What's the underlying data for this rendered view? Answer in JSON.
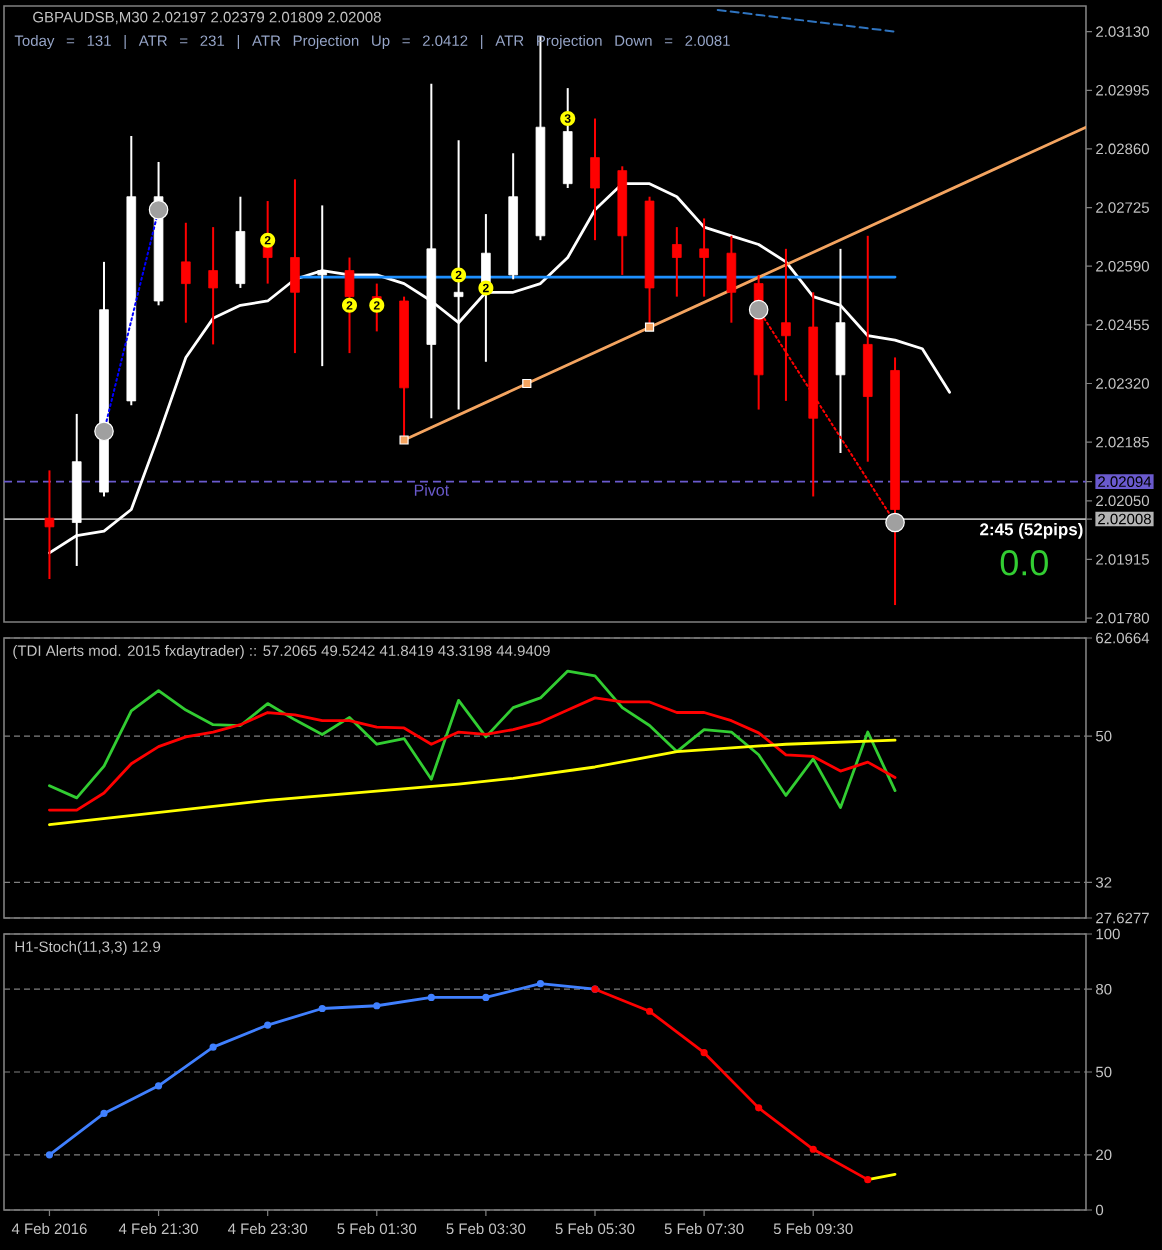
{
  "chart_data": [
    {
      "type": "candlestick",
      "title": "GBPAUDSB,M30 2.02197 2.02379 2.01809 2.02008",
      "subtitle": "Today = 131 | ATR = 231 | ATR Projection Up = 2.0412 | ATR Projection Down = 2.0081",
      "x": [
        "2016-02-04T19:30",
        "2016-02-04T20:00",
        "2016-02-04T20:30",
        "2016-02-04T21:00",
        "2016-02-04T21:30",
        "2016-02-04T22:00",
        "2016-02-04T22:30",
        "2016-02-04T23:00",
        "2016-02-04T23:30",
        "2016-02-05T00:00",
        "2016-02-05T00:30",
        "2016-02-05T01:00",
        "2016-02-05T01:30",
        "2016-02-05T02:00",
        "2016-02-05T02:30",
        "2016-02-05T03:00",
        "2016-02-05T03:30",
        "2016-02-05T04:00",
        "2016-02-05T04:30",
        "2016-02-05T05:00",
        "2016-02-05T05:30",
        "2016-02-05T06:00",
        "2016-02-05T06:30",
        "2016-02-05T07:00",
        "2016-02-05T07:30",
        "2016-02-05T08:00",
        "2016-02-05T08:30",
        "2016-02-05T09:00",
        "2016-02-05T09:30",
        "2016-02-05T10:00",
        "2016-02-05T10:30",
        "2016-02-05T11:00"
      ],
      "ohlc": [
        [
          2.0201,
          2.0212,
          2.0187,
          2.0199
        ],
        [
          2.02,
          2.0225,
          2.019,
          2.0214
        ],
        [
          2.0207,
          2.026,
          2.0206,
          2.0249
        ],
        [
          2.0228,
          2.0289,
          2.0227,
          2.0275
        ],
        [
          2.0251,
          2.0283,
          2.025,
          2.0275
        ],
        [
          2.026,
          2.0269,
          2.0246,
          2.0255
        ],
        [
          2.0258,
          2.0268,
          2.0241,
          2.0254
        ],
        [
          2.0255,
          2.0275,
          2.0254,
          2.0267
        ],
        [
          2.0264,
          2.0274,
          2.0255,
          2.0261
        ],
        [
          2.0261,
          2.0279,
          2.0239,
          2.0253
        ],
        [
          2.0257,
          2.0273,
          2.0236,
          2.0258
        ],
        [
          2.0258,
          2.0261,
          2.0239,
          2.0252
        ],
        [
          2.0252,
          2.0255,
          2.0244,
          2.0249
        ],
        [
          2.0251,
          2.0252,
          2.0219,
          2.0231
        ],
        [
          2.0241,
          2.0301,
          2.0224,
          2.0263
        ],
        [
          2.0252,
          2.0288,
          2.0226,
          2.0253
        ],
        [
          2.0253,
          2.0271,
          2.0237,
          2.0262
        ],
        [
          2.0257,
          2.0285,
          2.0256,
          2.0275
        ],
        [
          2.0266,
          2.0312,
          2.0265,
          2.0291
        ],
        [
          2.0278,
          2.03,
          2.0277,
          2.029
        ],
        [
          2.0284,
          2.0293,
          2.0265,
          2.0277
        ],
        [
          2.0281,
          2.0282,
          2.0257,
          2.0266
        ],
        [
          2.0274,
          2.0275,
          2.0245,
          2.0254
        ],
        [
          2.0264,
          2.0268,
          2.0252,
          2.0261
        ],
        [
          2.0263,
          2.027,
          2.0252,
          2.0261
        ],
        [
          2.0262,
          2.0266,
          2.0246,
          2.0253
        ],
        [
          2.0255,
          2.0257,
          2.0226,
          2.0234
        ],
        [
          2.0246,
          2.0263,
          2.0228,
          2.0243
        ],
        [
          2.0245,
          2.0253,
          2.0206,
          2.0224
        ],
        [
          2.0234,
          2.0263,
          2.0216,
          2.0246
        ],
        [
          2.0241,
          2.0266,
          2.0214,
          2.0229
        ],
        [
          2.0235,
          2.0238,
          2.0181,
          2.0203
        ]
      ],
      "colors": [
        "#ff0000",
        "#ffffff",
        "#ffffff",
        "#ffffff",
        "#ffffff",
        "#ff0000",
        "#ff0000",
        "#ffffff",
        "#ff0000",
        "#ff0000",
        "#ffffff",
        "#ff0000",
        "#ff0000",
        "#ff0000",
        "#ffffff",
        "#ffffff",
        "#ffffff",
        "#ffffff",
        "#ffffff",
        "#ffffff",
        "#ff0000",
        "#ff0000",
        "#ff0000",
        "#ff0000",
        "#ff0000",
        "#ff0000",
        "#ff0000",
        "#ff0000",
        "#ff0000",
        "#ffffff",
        "#ff0000",
        "#ff0000"
      ],
      "series": [
        {
          "type": "line",
          "color": "#ffffff",
          "x": [
            "2016-02-04T19:30",
            "2016-02-04T20:00",
            "2016-02-04T20:30",
            "2016-02-04T21:00",
            "2016-02-04T21:30",
            "2016-02-04T22:00",
            "2016-02-04T22:30",
            "2016-02-04T23:00",
            "2016-02-04T23:30",
            "2016-02-05T00:00",
            "2016-02-05T00:30",
            "2016-02-05T01:00",
            "2016-02-05T01:30",
            "2016-02-05T02:00",
            "2016-02-05T02:30",
            "2016-02-05T03:00",
            "2016-02-05T03:30",
            "2016-02-05T04:00",
            "2016-02-05T04:30",
            "2016-02-05T05:00",
            "2016-02-05T05:30",
            "2016-02-05T06:00",
            "2016-02-05T06:30",
            "2016-02-05T07:00",
            "2016-02-05T07:30",
            "2016-02-05T08:00",
            "2016-02-05T08:30",
            "2016-02-05T09:00",
            "2016-02-05T09:30",
            "2016-02-05T10:00",
            "2016-02-05T10:30",
            "2016-02-05T11:00",
            "2016-02-05T11:30",
            "2016-02-05T12:00"
          ],
          "values": [
            2.0193,
            2.0197,
            2.0198,
            2.0203,
            2.022,
            2.0238,
            2.0247,
            2.025,
            2.0251,
            2.0256,
            2.0258,
            2.0257,
            2.0257,
            2.0255,
            2.0251,
            2.0246,
            2.0253,
            2.0253,
            2.0255,
            2.0261,
            2.0272,
            2.0278,
            2.0278,
            2.0275,
            2.0268,
            2.0266,
            2.0264,
            2.026,
            2.0252,
            2.025,
            2.0243,
            2.0242,
            2.024,
            2.023
          ]
        },
        {
          "type": "line",
          "color": "#1e90ff",
          "x": [
            "2016-02-05T00:00",
            "2016-02-05T11:00"
          ],
          "values": [
            2.02565,
            2.02565
          ]
        },
        {
          "type": "line",
          "color": "#f4a460",
          "x": [
            "2016-02-05T02:00",
            "2016-02-05T14:30"
          ],
          "values": [
            2.0219,
            2.0291
          ]
        },
        {
          "type": "scatter",
          "color": "#f4a460",
          "marker": "square",
          "x": [
            "2016-02-05T02:00",
            "2016-02-05T04:15",
            "2016-02-05T06:30"
          ],
          "values": [
            2.0219,
            2.0232,
            2.0245
          ]
        },
        {
          "type": "line",
          "color": "#2f74c0",
          "line_style": "dashed",
          "x": [
            "2016-02-05T07:45",
            "2016-02-05T11:00"
          ],
          "values": [
            2.0318,
            2.0313
          ]
        },
        {
          "type": "scatter",
          "color": "#a0a0a0",
          "marker": "circle",
          "x": [
            "2016-02-04T20:30",
            "2016-02-04T21:30",
            "2016-02-05T08:30",
            "2016-02-05T11:00"
          ],
          "values": [
            2.0221,
            2.0272,
            2.0249,
            2.02
          ]
        },
        {
          "type": "line",
          "color": "#0000ff",
          "line_style": "dotted",
          "x": [
            "2016-02-04T20:30",
            "2016-02-04T21:30"
          ],
          "values": [
            2.0221,
            2.0272
          ]
        },
        {
          "type": "line",
          "color": "#ff0000",
          "line_style": "dotted",
          "x": [
            "2016-02-05T08:30",
            "2016-02-05T11:00"
          ],
          "values": [
            2.0249,
            2.02
          ]
        }
      ],
      "ref_lines": [
        {
          "axis": "y",
          "value": 2.02094,
          "label": "Pivot",
          "color": "#6a5acd",
          "line_style": "dashed"
        },
        {
          "axis": "y",
          "value": 2.02008,
          "color": "#b4b4b4"
        }
      ],
      "annotations": [
        {
          "text": "2",
          "x": "2016-02-04T23:30",
          "y": 2.0265
        },
        {
          "text": "2",
          "x": "2016-02-05T01:00",
          "y": 2.025
        },
        {
          "text": "2",
          "x": "2016-02-05T01:30",
          "y": 2.025
        },
        {
          "text": "2",
          "x": "2016-02-05T03:00",
          "y": 2.0257
        },
        {
          "text": "2",
          "x": "2016-02-05T03:30",
          "y": 2.0254
        },
        {
          "text": "3",
          "x": "2016-02-05T05:00",
          "y": 2.0293
        },
        "2:45 (52pips)",
        "0.0"
      ],
      "xlim": [
        "2016-02-04T18:40",
        "2016-02-05T14:30"
      ],
      "ylim": [
        2.01771,
        2.03189
      ],
      "yticks": [
        {
          "value": 2.0313,
          "label": "2.03130"
        },
        2.02995,
        {
          "value": 2.0286,
          "label": "2.02860"
        },
        2.02725,
        {
          "value": 2.0259,
          "label": "2.02590"
        },
        2.02455,
        {
          "value": 2.0232,
          "label": "2.02320"
        },
        2.02185,
        2.02094,
        {
          "value": 2.0205,
          "label": "2.02050"
        },
        2.02008,
        2.01915,
        {
          "value": 2.0178,
          "label": "2.01780"
        }
      ],
      "tick_labels": "y"
    },
    {
      "type": "line",
      "title": "(TDI Alerts mod. 2015 fxdaytrader) :: 57.2065 49.5242 41.8419 43.3198 44.9409",
      "x": [
        "2016-02-04T19:30",
        "2016-02-04T20:00",
        "2016-02-04T20:30",
        "2016-02-04T21:00",
        "2016-02-04T21:30",
        "2016-02-04T22:00",
        "2016-02-04T22:30",
        "2016-02-04T23:00",
        "2016-02-04T23:30",
        "2016-02-05T00:00",
        "2016-02-05T00:30",
        "2016-02-05T01:00",
        "2016-02-05T01:30",
        "2016-02-05T02:00",
        "2016-02-05T02:30",
        "2016-02-05T03:00",
        "2016-02-05T03:30",
        "2016-02-05T04:00",
        "2016-02-05T04:30",
        "2016-02-05T05:00",
        "2016-02-05T05:30",
        "2016-02-05T06:00",
        "2016-02-05T06:30",
        "2016-02-05T07:00",
        "2016-02-05T07:30",
        "2016-02-05T08:00",
        "2016-02-05T08:30",
        "2016-02-05T09:00",
        "2016-02-05T09:30",
        "2016-02-05T10:00",
        "2016-02-05T10:30",
        "2016-02-05T11:00"
      ],
      "series": [
        {
          "color": "#32cd32",
          "values": [
            43.9,
            42.4,
            46.3,
            53.1,
            55.6,
            53.2,
            51.4,
            51.3,
            54.0,
            52.0,
            50.2,
            52.3,
            49.0,
            49.7,
            44.7,
            54.4,
            49.9,
            53.5,
            54.7,
            58.0,
            57.4,
            53.5,
            51.3,
            48.1,
            50.8,
            50.5,
            47.7,
            42.7,
            47.2,
            41.2,
            50.5,
            43.3
          ]
        },
        {
          "color": "#ff0000",
          "values": [
            40.9,
            40.9,
            43.0,
            46.6,
            48.7,
            49.9,
            50.5,
            51.4,
            52.9,
            52.6,
            51.9,
            51.9,
            51.1,
            51.0,
            49.0,
            50.5,
            50.2,
            50.8,
            51.7,
            53.2,
            54.7,
            54.2,
            54.2,
            52.9,
            52.9,
            51.9,
            50.4,
            47.7,
            47.5,
            45.7,
            46.8,
            44.9
          ]
        },
        {
          "color": "#ffff00",
          "x": [
            "2016-02-04T19:30",
            "2016-02-04T23:30",
            "2016-02-05T03:00",
            "2016-02-05T04:00",
            "2016-02-05T05:30",
            "2016-02-05T07:00",
            "2016-02-05T09:00",
            "2016-02-05T11:00"
          ],
          "values": [
            39.1,
            42.1,
            44.1,
            44.8,
            46.2,
            48.1,
            49.0,
            49.5
          ]
        }
      ],
      "xlim": [
        "2016-02-04T18:40",
        "2016-02-05T14:30"
      ],
      "ylim": [
        27.6277,
        62.0664
      ],
      "yticks": [
        62.0664,
        50,
        32,
        27.6277
      ],
      "grid": "y",
      "tick_labels": "y"
    },
    {
      "type": "line",
      "title": "H1-Stoch(11,3,3) 12.9",
      "series": [
        {
          "color": "#4080ff",
          "marker": "circle",
          "x": [
            "2016-02-04T19:30",
            "2016-02-04T20:30",
            "2016-02-04T21:30",
            "2016-02-04T22:30",
            "2016-02-04T23:30",
            "2016-02-05T00:30",
            "2016-02-05T01:30",
            "2016-02-05T02:30",
            "2016-02-05T03:30",
            "2016-02-05T04:30",
            "2016-02-05T05:30"
          ],
          "values": [
            20,
            35,
            45,
            59,
            67,
            73,
            74,
            77,
            77,
            82,
            80
          ]
        },
        {
          "color": "#ff0000",
          "marker": "circle",
          "x": [
            "2016-02-05T05:30",
            "2016-02-05T06:30",
            "2016-02-05T07:30",
            "2016-02-05T08:30",
            "2016-02-05T09:30",
            "2016-02-05T10:30"
          ],
          "values": [
            80,
            72,
            57,
            37,
            22,
            11
          ]
        },
        {
          "color": "#ffff00",
          "x": [
            "2016-02-05T10:30",
            "2016-02-05T11:00"
          ],
          "values": [
            11,
            12.9
          ]
        }
      ],
      "xlim": [
        "2016-02-04T18:40",
        "2016-02-05T14:30"
      ],
      "ylim": [
        0,
        100
      ],
      "yticks": [
        100,
        80,
        50,
        20,
        0
      ],
      "xticks": [
        {
          "value": "2016-02-04T19:30",
          "label": "4 Feb 2016"
        },
        {
          "value": "2016-02-04T21:30",
          "label": "4 Feb 21:30"
        },
        {
          "value": "2016-02-04T23:30",
          "label": "4 Feb 23:30"
        },
        {
          "value": "2016-02-05T01:30",
          "label": "5 Feb 01:30"
        },
        {
          "value": "2016-02-05T03:30",
          "label": "5 Feb 03:30"
        },
        {
          "value": "2016-02-05T05:30",
          "label": "5 Feb 05:30"
        },
        {
          "value": "2016-02-05T07:30",
          "label": "5 Feb 07:30"
        },
        {
          "value": "2016-02-05T09:30",
          "label": "5 Feb 09:30"
        }
      ],
      "grid": "y"
    }
  ]
}
